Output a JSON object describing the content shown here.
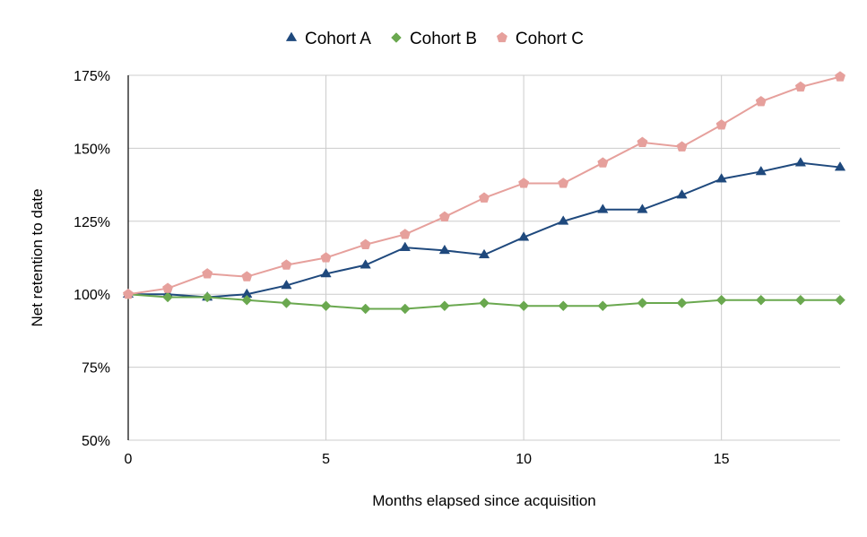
{
  "chart_data": {
    "type": "line",
    "xlabel": "Months elapsed since acquisition",
    "ylabel": "Net retention to date",
    "xlim": [
      0,
      18
    ],
    "ylim": [
      50,
      175
    ],
    "x_ticks": [
      0,
      5,
      10,
      15
    ],
    "y_ticks": [
      50,
      75,
      100,
      125,
      150,
      175
    ],
    "y_tick_labels": [
      "50%",
      "75%",
      "100%",
      "125%",
      "150%",
      "175%"
    ],
    "grid": true,
    "legend_position": "top",
    "x": [
      0,
      1,
      2,
      3,
      4,
      5,
      6,
      7,
      8,
      9,
      10,
      11,
      12,
      13,
      14,
      15,
      16,
      17,
      18
    ],
    "series": [
      {
        "name": "Cohort A",
        "color": "#1f497d",
        "marker": "triangle",
        "values": [
          100,
          100,
          99,
          100,
          103,
          107,
          110,
          116,
          115,
          113.5,
          119.5,
          125,
          129,
          129,
          134,
          139.5,
          142,
          145,
          143.5
        ]
      },
      {
        "name": "Cohort B",
        "color": "#6aa84f",
        "marker": "diamond",
        "values": [
          100,
          99,
          99,
          98,
          97,
          96,
          95,
          95,
          96,
          97,
          96,
          96,
          96,
          97,
          97,
          98,
          98,
          98,
          98
        ]
      },
      {
        "name": "Cohort C",
        "color": "#e6a09c",
        "marker": "pentagon",
        "values": [
          100,
          102,
          107,
          106,
          110,
          112.5,
          117,
          120.5,
          126.5,
          133,
          138,
          138,
          145,
          152,
          150.5,
          158,
          166,
          171,
          174.5
        ]
      }
    ]
  }
}
